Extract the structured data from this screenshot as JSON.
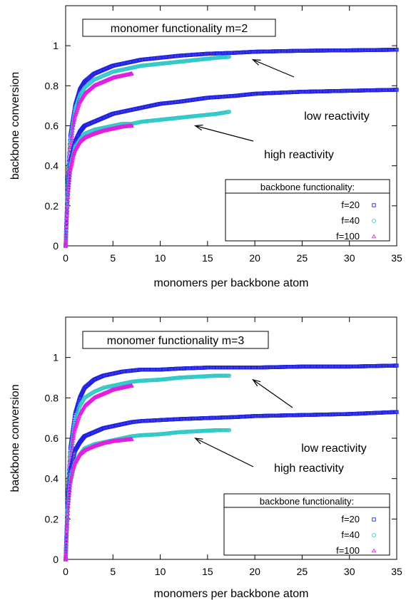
{
  "chart_data": [
    {
      "type": "scatter",
      "title": "monomer functionality m=2",
      "xlabel": "monomers per backbone atom",
      "ylabel": "backbone conversion",
      "xlim": [
        0,
        35
      ],
      "ylim": [
        0,
        1.2
      ],
      "xticks": [
        0,
        5,
        10,
        15,
        20,
        25,
        30,
        35
      ],
      "yticks": [
        0,
        0.2,
        0.4,
        0.6,
        0.8,
        1
      ],
      "grid": false,
      "legend_title": "backbone functionality:",
      "legend_position": "bottom-right",
      "annotations": [
        {
          "text": "low reactivity",
          "arrow_to": [
            19.8,
            0.93
          ]
        },
        {
          "text": "high reactivity",
          "arrow_to": [
            13.7,
            0.6
          ]
        }
      ],
      "series": [
        {
          "name": "f=20",
          "group": "low reactivity",
          "color": "#2020e0",
          "marker": "square",
          "x": [
            0,
            0.2,
            0.5,
            1,
            1.5,
            2,
            3,
            4,
            5,
            6,
            7,
            8,
            10,
            12,
            15,
            18,
            20,
            25,
            30,
            35
          ],
          "y": [
            0,
            0.3,
            0.55,
            0.7,
            0.78,
            0.82,
            0.86,
            0.88,
            0.9,
            0.91,
            0.92,
            0.93,
            0.94,
            0.95,
            0.96,
            0.965,
            0.97,
            0.975,
            0.977,
            0.98
          ]
        },
        {
          "name": "f=40",
          "group": "low reactivity",
          "color": "#30c8c8",
          "marker": "circle",
          "x": [
            0,
            0.2,
            0.5,
            1,
            1.5,
            2,
            3,
            4,
            5,
            6,
            7,
            8,
            10,
            12,
            14,
            16,
            17.3
          ],
          "y": [
            0,
            0.28,
            0.52,
            0.68,
            0.75,
            0.79,
            0.83,
            0.85,
            0.87,
            0.88,
            0.89,
            0.9,
            0.91,
            0.92,
            0.93,
            0.94,
            0.945
          ]
        },
        {
          "name": "f=100",
          "group": "low reactivity",
          "color": "#e020e0",
          "marker": "triangle",
          "x": [
            0,
            0.1,
            0.3,
            0.5,
            0.8,
            1,
            1.5,
            2,
            3,
            4,
            5,
            6,
            7
          ],
          "y": [
            0,
            0.15,
            0.35,
            0.48,
            0.6,
            0.65,
            0.72,
            0.76,
            0.8,
            0.82,
            0.84,
            0.85,
            0.86
          ]
        },
        {
          "name": "f=20",
          "group": "high reactivity",
          "color": "#2020e0",
          "marker": "square",
          "x": [
            0,
            0.2,
            0.5,
            1,
            1.5,
            2,
            3,
            4,
            5,
            6,
            7,
            8,
            10,
            12,
            15,
            18,
            20,
            25,
            30,
            35
          ],
          "y": [
            0,
            0.25,
            0.42,
            0.52,
            0.57,
            0.6,
            0.62,
            0.64,
            0.66,
            0.67,
            0.68,
            0.69,
            0.71,
            0.72,
            0.74,
            0.75,
            0.76,
            0.77,
            0.775,
            0.78
          ]
        },
        {
          "name": "f=40",
          "group": "high reactivity",
          "color": "#30c8c8",
          "marker": "circle",
          "x": [
            0,
            0.2,
            0.5,
            1,
            1.5,
            2,
            3,
            4,
            5,
            6,
            7,
            8,
            10,
            12,
            14,
            16,
            17.3
          ],
          "y": [
            0,
            0.23,
            0.4,
            0.49,
            0.53,
            0.56,
            0.58,
            0.59,
            0.6,
            0.61,
            0.61,
            0.62,
            0.63,
            0.64,
            0.65,
            0.66,
            0.67
          ]
        },
        {
          "name": "f=100",
          "group": "high reactivity",
          "color": "#e020e0",
          "marker": "triangle",
          "x": [
            0,
            0.1,
            0.3,
            0.5,
            0.8,
            1,
            1.5,
            2,
            3,
            4,
            5,
            6,
            7
          ],
          "y": [
            0,
            0.12,
            0.28,
            0.38,
            0.45,
            0.48,
            0.52,
            0.54,
            0.56,
            0.575,
            0.585,
            0.595,
            0.6
          ]
        }
      ]
    },
    {
      "type": "scatter",
      "title": "monomer functionality m=3",
      "xlabel": "monomers per backbone atom",
      "ylabel": "backbone conversion",
      "xlim": [
        0,
        35
      ],
      "ylim": [
        0,
        1.2
      ],
      "xticks": [
        0,
        5,
        10,
        15,
        20,
        25,
        30,
        35
      ],
      "yticks": [
        0,
        0.2,
        0.4,
        0.6,
        0.8,
        1
      ],
      "grid": false,
      "legend_title": "backbone functionality:",
      "legend_position": "bottom-right",
      "annotations": [
        {
          "text": "low reactivity",
          "arrow_to": [
            19.8,
            0.89
          ]
        },
        {
          "text": "high reactivity",
          "arrow_to": [
            13.7,
            0.6
          ]
        }
      ],
      "series": [
        {
          "name": "f=20",
          "group": "low reactivity",
          "color": "#2020e0",
          "marker": "square",
          "x": [
            0,
            0.2,
            0.5,
            1,
            1.5,
            2,
            3,
            4,
            5,
            6,
            7,
            8,
            10,
            12,
            15,
            18,
            20,
            25,
            30,
            35
          ],
          "y": [
            0,
            0.3,
            0.55,
            0.72,
            0.8,
            0.85,
            0.89,
            0.91,
            0.92,
            0.93,
            0.935,
            0.94,
            0.94,
            0.945,
            0.95,
            0.95,
            0.95,
            0.955,
            0.955,
            0.96
          ]
        },
        {
          "name": "f=40",
          "group": "low reactivity",
          "color": "#30c8c8",
          "marker": "circle",
          "x": [
            0,
            0.2,
            0.5,
            1,
            1.5,
            2,
            3,
            4,
            5,
            6,
            7,
            8,
            10,
            12,
            14,
            16,
            17.3
          ],
          "y": [
            0,
            0.28,
            0.52,
            0.68,
            0.76,
            0.8,
            0.83,
            0.85,
            0.86,
            0.87,
            0.88,
            0.885,
            0.89,
            0.9,
            0.905,
            0.91,
            0.91
          ]
        },
        {
          "name": "f=100",
          "group": "low reactivity",
          "color": "#e020e0",
          "marker": "triangle",
          "x": [
            0,
            0.1,
            0.3,
            0.5,
            0.8,
            1,
            1.5,
            2,
            3,
            4,
            5,
            6,
            7
          ],
          "y": [
            0,
            0.15,
            0.35,
            0.48,
            0.6,
            0.65,
            0.72,
            0.76,
            0.8,
            0.82,
            0.84,
            0.85,
            0.86
          ]
        },
        {
          "name": "f=20",
          "group": "high reactivity",
          "color": "#2020e0",
          "marker": "square",
          "x": [
            0,
            0.2,
            0.5,
            1,
            1.5,
            2,
            3,
            4,
            5,
            6,
            7,
            8,
            10,
            12,
            15,
            18,
            20,
            25,
            30,
            35
          ],
          "y": [
            0,
            0.26,
            0.44,
            0.54,
            0.58,
            0.61,
            0.63,
            0.65,
            0.66,
            0.67,
            0.68,
            0.685,
            0.69,
            0.695,
            0.7,
            0.705,
            0.71,
            0.715,
            0.72,
            0.73
          ]
        },
        {
          "name": "f=40",
          "group": "high reactivity",
          "color": "#30c8c8",
          "marker": "circle",
          "x": [
            0,
            0.2,
            0.5,
            1,
            1.5,
            2,
            3,
            4,
            5,
            6,
            7,
            8,
            10,
            12,
            14,
            16,
            17.3
          ],
          "y": [
            0,
            0.23,
            0.4,
            0.48,
            0.52,
            0.55,
            0.57,
            0.58,
            0.59,
            0.6,
            0.61,
            0.615,
            0.62,
            0.63,
            0.635,
            0.64,
            0.64
          ]
        },
        {
          "name": "f=100",
          "group": "high reactivity",
          "color": "#e020e0",
          "marker": "triangle",
          "x": [
            0,
            0.1,
            0.3,
            0.5,
            0.8,
            1,
            1.5,
            2,
            3,
            4,
            5,
            6,
            7
          ],
          "y": [
            0,
            0.12,
            0.28,
            0.38,
            0.45,
            0.48,
            0.52,
            0.54,
            0.56,
            0.575,
            0.585,
            0.59,
            0.595
          ]
        }
      ]
    }
  ]
}
